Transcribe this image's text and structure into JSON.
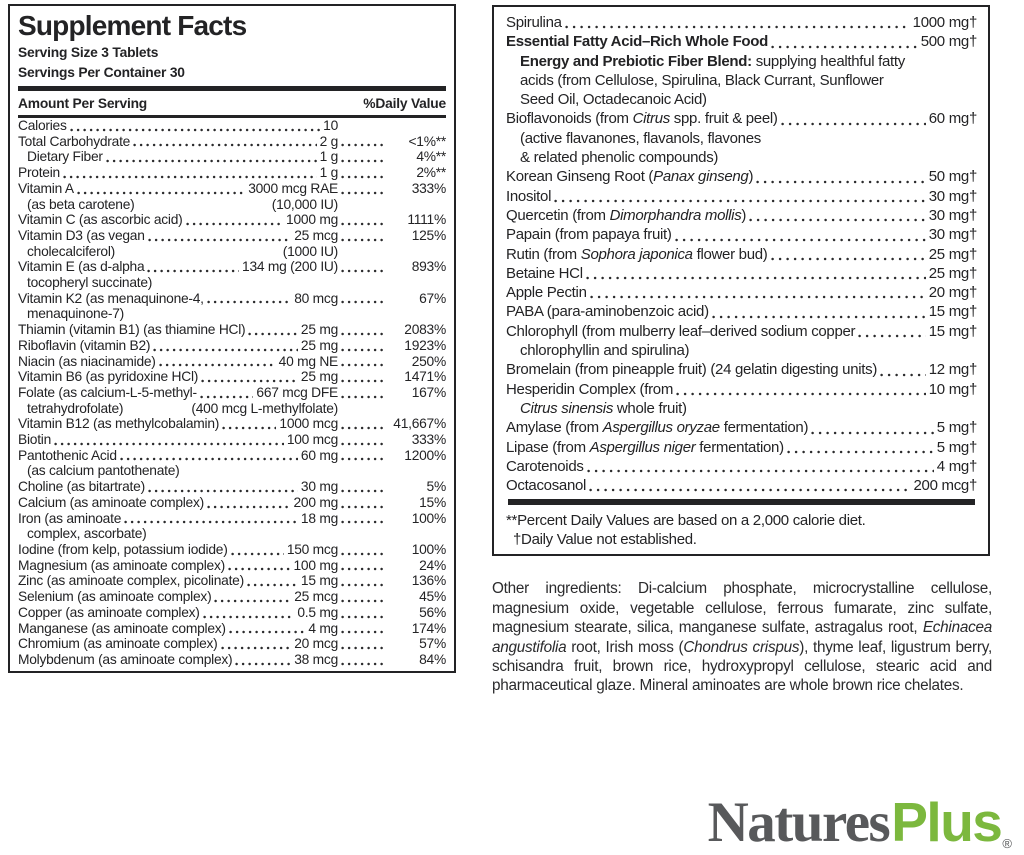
{
  "colors": {
    "text": "#232325",
    "logo_gray": "#58595b",
    "logo_green": "#7cb83e"
  },
  "panel_left": {
    "title": "Supplement Facts",
    "serving_size": "Serving Size 3 Tablets",
    "servings_per_container": "Servings Per Container 30",
    "col_amount": "Amount Per Serving",
    "col_dv": "%Daily Value",
    "rows": [
      {
        "name": "Calories",
        "amount": "10",
        "dv": ""
      },
      {
        "name": "Total Carbohydrate",
        "amount": "2 g",
        "dv": "<1%**"
      },
      {
        "name": "Dietary Fiber",
        "indent": true,
        "amount": "1 g",
        "dv": "4%**"
      },
      {
        "name": "Protein",
        "amount": "1 g",
        "dv": "2%**"
      },
      {
        "name": "Vitamin A",
        "amount": "3000 mcg RAE",
        "dv": "333%",
        "sub": "(as beta carotene)",
        "sub_amount": "(10,000 IU)"
      },
      {
        "name": "Vitamin C (as ascorbic acid)",
        "amount": "1000 mg",
        "dv": "1111%"
      },
      {
        "name": "Vitamin D3 (as vegan",
        "amount": "25 mcg",
        "dv": "125%",
        "sub": "cholecalciferol)",
        "sub_amount": "(1000 IU)"
      },
      {
        "name": "Vitamin E (as d-alpha",
        "amount": "134 mg (200 IU)",
        "dv": "893%",
        "sub": "tocopheryl succinate)"
      },
      {
        "name": "Vitamin K2 (as menaquinone-4,",
        "amount": "80 mcg",
        "dv": "67%",
        "sub": "menaquinone-7)"
      },
      {
        "name": "Thiamin (vitamin B1) (as thiamine HCl)",
        "amount": "25 mg",
        "dv": "2083%"
      },
      {
        "name": "Riboflavin (vitamin B2)",
        "amount": "25 mg",
        "dv": "1923%"
      },
      {
        "name": "Niacin (as niacinamide)",
        "amount": "40 mg NE",
        "dv": "250%"
      },
      {
        "name": "Vitamin B6 (as pyridoxine HCl)",
        "amount": "25 mg",
        "dv": "1471%"
      },
      {
        "name": "Folate (as calcium-L-5-methyl-",
        "amount": "667 mcg DFE",
        "dv": "167%",
        "sub": "tetrahydrofolate)",
        "sub_amount": "(400 mcg L-methylfolate)"
      },
      {
        "name": "Vitamin B12 (as methylcobalamin)",
        "amount": "1000 mcg",
        "dv": "41,667%"
      },
      {
        "name": "Biotin",
        "amount": "100 mcg",
        "dv": "333%"
      },
      {
        "name": "Pantothenic Acid",
        "amount": "60 mg",
        "dv": "1200%",
        "sub": "(as calcium pantothenate)"
      },
      {
        "name": "Choline (as bitartrate)",
        "amount": "30 mg",
        "dv": "5%"
      },
      {
        "name": "Calcium (as aminoate complex)",
        "amount": "200 mg",
        "dv": "15%"
      },
      {
        "name": "Iron (as aminoate",
        "amount": "18 mg",
        "dv": "100%",
        "sub": "complex, ascorbate)"
      },
      {
        "name": "Iodine (from kelp, potassium iodide)",
        "amount": "150 mcg",
        "dv": "100%"
      },
      {
        "name": "Magnesium (as aminoate complex)",
        "amount": "100 mg",
        "dv": "24%"
      },
      {
        "name": "Zinc (as aminoate complex, picolinate)",
        "amount": "15 mg",
        "dv": "136%"
      },
      {
        "name": "Selenium (as aminoate complex)",
        "amount": "25 mcg",
        "dv": "45%"
      },
      {
        "name": "Copper (as aminoate complex)",
        "amount": "0.5 mg",
        "dv": "56%"
      },
      {
        "name": "Manganese (as aminoate complex)",
        "amount": "4 mg",
        "dv": "174%"
      },
      {
        "name": "Chromium (as aminoate complex)",
        "amount": "20 mcg",
        "dv": "57%"
      },
      {
        "name": "Molybdenum (as aminoate complex)",
        "amount": "38 mcg",
        "dv": "84%"
      }
    ]
  },
  "panel_right": {
    "rows": [
      {
        "segs": [
          {
            "t": "Spirulina"
          }
        ],
        "amount": "1000 mg†"
      },
      {
        "segs": [
          {
            "t": "Essential Fatty Acid–Rich Whole Food",
            "b": true
          }
        ],
        "amount": "500 mg†",
        "subs": [
          {
            "segs": [
              {
                "t": "Energy and Prebiotic Fiber Blend: ",
                "b": true
              },
              {
                "t": "supplying healthful fatty"
              }
            ]
          },
          {
            "segs": [
              {
                "t": "acids (from Cellulose, Spirulina, Black Currant, Sunflower"
              }
            ]
          },
          {
            "segs": [
              {
                "t": "Seed Oil, Octadecanoic Acid)"
              }
            ]
          }
        ]
      },
      {
        "segs": [
          {
            "t": "Bioflavonoids (from "
          },
          {
            "t": "Citrus",
            "i": true
          },
          {
            "t": " spp. fruit & peel)"
          }
        ],
        "amount": "60 mg†",
        "subs": [
          {
            "segs": [
              {
                "t": "(active flavanones, flavanols, flavones"
              }
            ]
          },
          {
            "segs": [
              {
                "t": "& related phenolic compounds)"
              }
            ]
          }
        ]
      },
      {
        "segs": [
          {
            "t": "Korean Ginseng Root ("
          },
          {
            "t": "Panax ginseng",
            "i": true
          },
          {
            "t": ")"
          }
        ],
        "amount": "50 mg†"
      },
      {
        "segs": [
          {
            "t": "Inositol"
          }
        ],
        "amount": "30 mg†"
      },
      {
        "segs": [
          {
            "t": "Quercetin (from "
          },
          {
            "t": "Dimorphandra mollis",
            "i": true
          },
          {
            "t": ")"
          }
        ],
        "amount": "30 mg†"
      },
      {
        "segs": [
          {
            "t": "Papain (from papaya fruit)"
          }
        ],
        "amount": "30 mg†"
      },
      {
        "segs": [
          {
            "t": "Rutin (from "
          },
          {
            "t": "Sophora japonica",
            "i": true
          },
          {
            "t": " flower bud)"
          }
        ],
        "amount": "25 mg†"
      },
      {
        "segs": [
          {
            "t": "Betaine HCl"
          }
        ],
        "amount": "25 mg†"
      },
      {
        "segs": [
          {
            "t": "Apple Pectin"
          }
        ],
        "amount": "20 mg†"
      },
      {
        "segs": [
          {
            "t": "PABA (para-aminobenzoic acid)"
          }
        ],
        "amount": "15 mg†"
      },
      {
        "segs": [
          {
            "t": "Chlorophyll (from mulberry leaf–derived sodium copper"
          }
        ],
        "amount": "15 mg†",
        "subs": [
          {
            "segs": [
              {
                "t": "chlorophyllin and spirulina)"
              }
            ]
          }
        ]
      },
      {
        "segs": [
          {
            "t": "Bromelain (from pineapple fruit) (24 gelatin digesting units)"
          }
        ],
        "amount": "12 mg†"
      },
      {
        "segs": [
          {
            "t": "Hesperidin Complex (from"
          }
        ],
        "amount": "10 mg†",
        "subs": [
          {
            "segs": [
              {
                "t": "Citrus sinensis",
                "i": true
              },
              {
                "t": " whole fruit)"
              }
            ]
          }
        ]
      },
      {
        "segs": [
          {
            "t": "Amylase (from "
          },
          {
            "t": "Aspergillus oryzae",
            "i": true
          },
          {
            "t": " fermentation)"
          }
        ],
        "amount": "5 mg†"
      },
      {
        "segs": [
          {
            "t": "Lipase (from "
          },
          {
            "t": "Aspergillus niger",
            "i": true
          },
          {
            "t": " fermentation)"
          }
        ],
        "amount": "5 mg†"
      },
      {
        "segs": [
          {
            "t": "Carotenoids"
          }
        ],
        "amount": "4 mg†"
      },
      {
        "segs": [
          {
            "t": "Octacosanol"
          }
        ],
        "amount": "200 mcg†"
      }
    ],
    "footnote_pct": "**Percent Daily Values are based on a 2,000 calorie diet.",
    "footnote_dv": "†Daily Value not established."
  },
  "other_ingredients": {
    "segments": [
      {
        "t": "Other ingredients: Di-calcium phosphate, microcrystalline cellulose, magnesium oxide, vegetable cellulose, ferrous fumarate, zinc sulfate, magnesium stearate, silica, manganese sulfate, astragalus root, "
      },
      {
        "t": "Echinacea angustifolia",
        "i": true
      },
      {
        "t": " root, Irish moss ("
      },
      {
        "t": "Chondrus crispus",
        "i": true
      },
      {
        "t": "), thyme leaf, ligustrum berry, schisandra fruit, brown rice, hydroxypropyl cellulose, stearic acid and pharmaceutical glaze. Mineral aminoates are whole brown rice chelates."
      }
    ]
  },
  "logo": {
    "natures": "Natures",
    "plus": "Plus",
    "reg": "®"
  }
}
